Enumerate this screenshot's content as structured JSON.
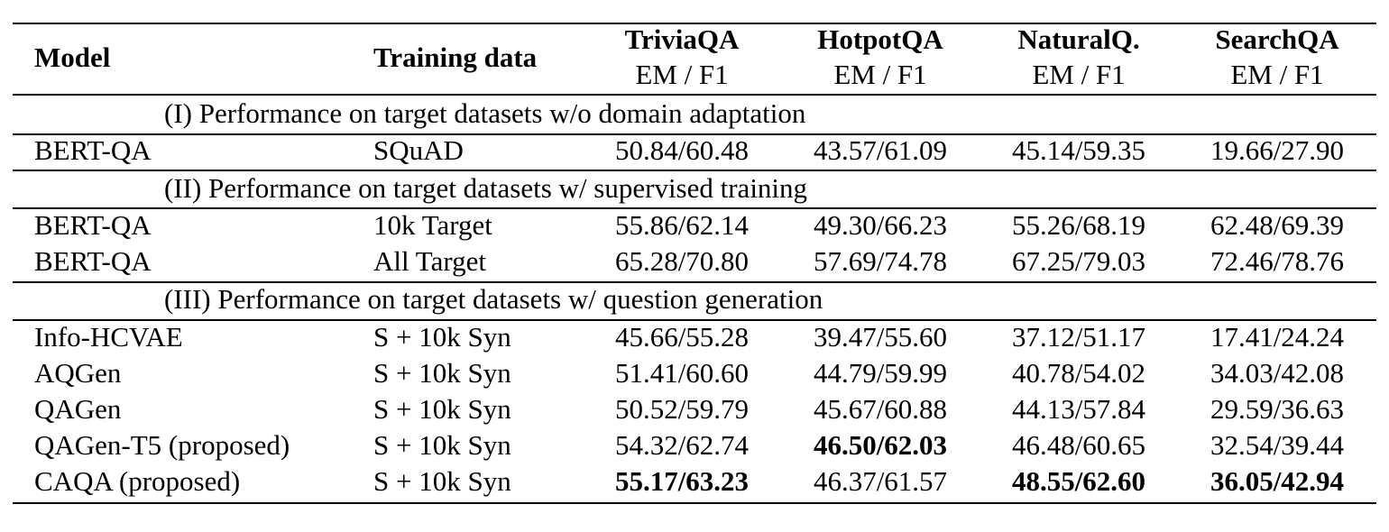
{
  "header": {
    "model": "Model",
    "training": "Training data",
    "datasets": [
      {
        "name": "TriviaQA",
        "metric": "EM / F1"
      },
      {
        "name": "HotpotQA",
        "metric": "EM / F1"
      },
      {
        "name": "NaturalQ.",
        "metric": "EM / F1"
      },
      {
        "name": "SearchQA",
        "metric": "EM / F1"
      }
    ]
  },
  "sections": [
    {
      "title": "(I) Performance on target datasets w/o domain adaptation",
      "rows": [
        {
          "model": "BERT-QA",
          "training": "SQuAD",
          "scores": [
            "50.84/60.48",
            "43.57/61.09",
            "45.14/59.35",
            "19.66/27.90"
          ],
          "bold": [
            false,
            false,
            false,
            false
          ]
        }
      ]
    },
    {
      "title": "(II) Performance on target datasets w/ supervised training",
      "rows": [
        {
          "model": "BERT-QA",
          "training": "10k Target",
          "scores": [
            "55.86/62.14",
            "49.30/66.23",
            "55.26/68.19",
            "62.48/69.39"
          ],
          "bold": [
            false,
            false,
            false,
            false
          ]
        },
        {
          "model": "BERT-QA",
          "training": "All Target",
          "scores": [
            "65.28/70.80",
            "57.69/74.78",
            "67.25/79.03",
            "72.46/78.76"
          ],
          "bold": [
            false,
            false,
            false,
            false
          ]
        }
      ]
    },
    {
      "title": "(III) Performance on target datasets w/ question generation",
      "rows": [
        {
          "model": "Info-HCVAE",
          "training": "S + 10k Syn",
          "scores": [
            "45.66/55.28",
            "39.47/55.60",
            "37.12/51.17",
            "17.41/24.24"
          ],
          "bold": [
            false,
            false,
            false,
            false
          ]
        },
        {
          "model": "AQGen",
          "training": "S + 10k Syn",
          "scores": [
            "51.41/60.60",
            "44.79/59.99",
            "40.78/54.02",
            "34.03/42.08"
          ],
          "bold": [
            false,
            false,
            false,
            false
          ]
        },
        {
          "model": "QAGen",
          "training": "S + 10k Syn",
          "scores": [
            "50.52/59.79",
            "45.67/60.88",
            "44.13/57.84",
            "29.59/36.63"
          ],
          "bold": [
            false,
            false,
            false,
            false
          ]
        },
        {
          "model": "QAGen-T5 (proposed)",
          "training": "S + 10k Syn",
          "scores": [
            "54.32/62.74",
            "46.50/62.03",
            "46.48/60.65",
            "32.54/39.44"
          ],
          "bold": [
            false,
            true,
            false,
            false
          ]
        },
        {
          "model": "CAQA (proposed)",
          "training": "S + 10k Syn",
          "scores": [
            "55.17/63.23",
            "46.37/61.57",
            "48.55/62.60",
            "36.05/42.94"
          ],
          "bold": [
            true,
            false,
            true,
            true
          ]
        }
      ]
    }
  ]
}
